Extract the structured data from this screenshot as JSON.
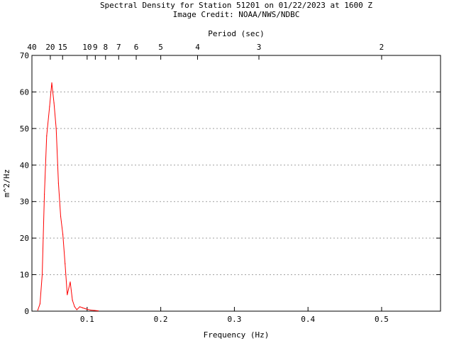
{
  "chart_data": {
    "type": "line",
    "title_line1": "Spectral Density for Station 51201 on 01/22/2023 at 1600 Z",
    "title_line2": "Image Credit: NOAA/NWS/NDBC",
    "xlabel": "Frequency (Hz)",
    "ylabel": "m^2/Hz",
    "x2label": "Period (sec)",
    "xlim": [
      0.025,
      0.58
    ],
    "ylim": [
      0,
      70
    ],
    "x_ticks": [
      {
        "value": 0.1,
        "label": "0.1"
      },
      {
        "value": 0.2,
        "label": "0.2"
      },
      {
        "value": 0.3,
        "label": "0.3"
      },
      {
        "value": 0.4,
        "label": "0.4"
      },
      {
        "value": 0.5,
        "label": "0.5"
      }
    ],
    "y_ticks": [
      {
        "value": 0,
        "label": "0"
      },
      {
        "value": 10,
        "label": "10"
      },
      {
        "value": 20,
        "label": "20"
      },
      {
        "value": 30,
        "label": "30"
      },
      {
        "value": 40,
        "label": "40"
      },
      {
        "value": 50,
        "label": "50"
      },
      {
        "value": 60,
        "label": "60"
      },
      {
        "value": 70,
        "label": "70"
      }
    ],
    "period_ticks": [
      {
        "period": 40,
        "label": "40"
      },
      {
        "period": 20,
        "label": "20"
      },
      {
        "period": 15,
        "label": "15"
      },
      {
        "period": 10,
        "label": "10"
      },
      {
        "period": 9,
        "label": "9"
      },
      {
        "period": 8,
        "label": "8"
      },
      {
        "period": 7,
        "label": "7"
      },
      {
        "period": 6,
        "label": "6"
      },
      {
        "period": 5,
        "label": "5"
      },
      {
        "period": 4,
        "label": "4"
      },
      {
        "period": 3,
        "label": "3"
      },
      {
        "period": 2,
        "label": "2"
      }
    ],
    "grid": "horizontal-dotted",
    "series": [
      {
        "color": "#ff0000",
        "x": [
          0.033,
          0.036,
          0.039,
          0.042,
          0.045,
          0.049,
          0.052,
          0.055,
          0.058,
          0.061,
          0.064,
          0.067,
          0.07,
          0.073,
          0.077,
          0.08,
          0.083,
          0.086,
          0.09,
          0.094,
          0.097,
          0.1,
          0.105,
          0.11,
          0.115
        ],
        "y": [
          0.3,
          2.0,
          10.0,
          32.0,
          48.0,
          56.0,
          62.5,
          57.0,
          50.0,
          35.0,
          26.0,
          21.0,
          13.0,
          4.5,
          8.0,
          3.0,
          1.2,
          0.4,
          1.2,
          0.9,
          0.7,
          0.5,
          0.3,
          0.2,
          0.1
        ]
      }
    ]
  }
}
